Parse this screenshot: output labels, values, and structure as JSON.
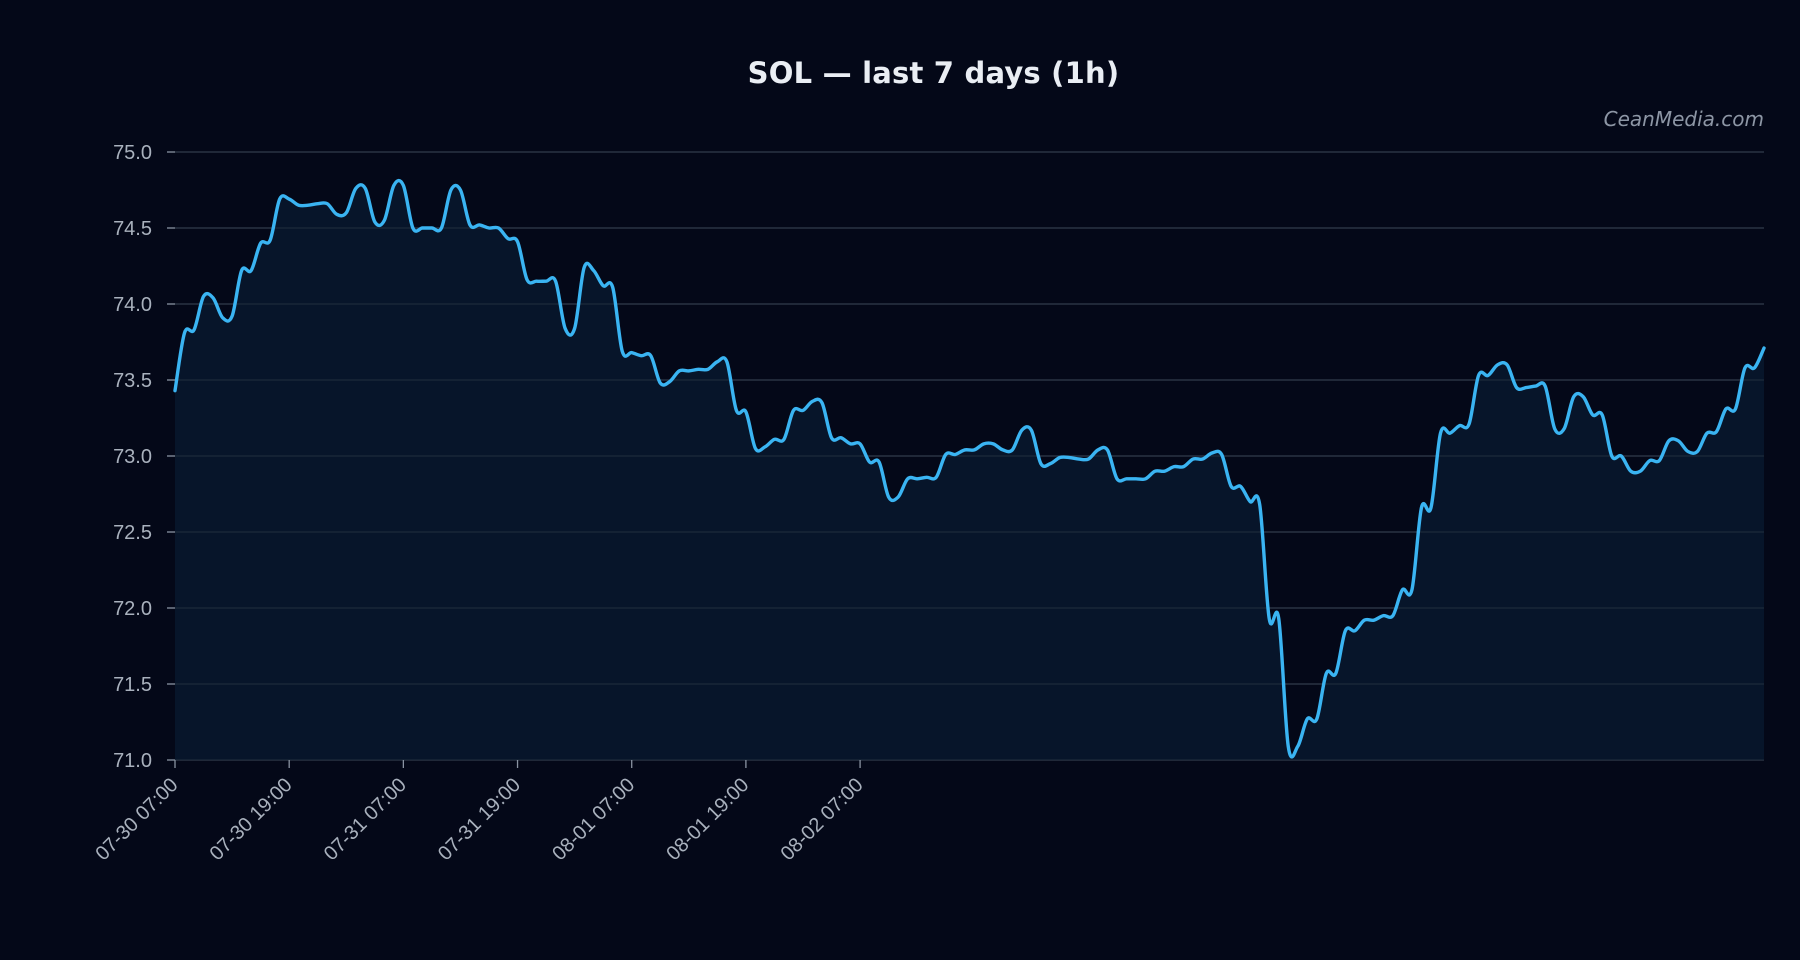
{
  "chart_data": {
    "type": "area",
    "title": "SOL — last 7 days (1h)",
    "watermark": "CeanMedia.com",
    "xlabel": "",
    "ylabel": "",
    "ylim": [
      71.0,
      75.0
    ],
    "yticks": [
      "75.0",
      "74.5",
      "74.0",
      "73.5",
      "73.0",
      "72.5",
      "72.0",
      "71.5",
      "71.0"
    ],
    "xticks": [
      "07-30 07:00",
      "07-30 19:00",
      "07-31 07:00",
      "07-31 19:00",
      "08-01 07:00",
      "08-01 19:00",
      "08-02 07:00"
    ],
    "x_start": "07-30 07:00",
    "x_step": "1h",
    "grid": true,
    "colors": {
      "line": "#3ab4f2",
      "fill": "#07162b",
      "grid": "#2e3848",
      "background": "#040818"
    },
    "series": [
      {
        "values": [
          73.43,
          73.81,
          73.83,
          74.05,
          74.04,
          73.91,
          73.92,
          74.22,
          74.22,
          74.4,
          74.42,
          74.69,
          74.69,
          74.65,
          74.65,
          74.66,
          74.66,
          74.59,
          74.6,
          74.76,
          74.76,
          74.54,
          74.55,
          74.78,
          74.78,
          74.5,
          74.5,
          74.5,
          74.5,
          74.75,
          74.75,
          74.52,
          74.52,
          74.5,
          74.5,
          74.43,
          74.41,
          74.16,
          74.15,
          74.15,
          74.15,
          73.84,
          73.84,
          74.24,
          74.22,
          74.12,
          74.11,
          73.69,
          73.68,
          73.66,
          73.66,
          73.48,
          73.49,
          73.56,
          73.56,
          73.57,
          73.57,
          73.62,
          73.62,
          73.3,
          73.29,
          73.05,
          73.06,
          73.11,
          73.11,
          73.3,
          73.3,
          73.36,
          73.35,
          73.12,
          73.12,
          73.08,
          73.08,
          72.96,
          72.96,
          72.73,
          72.73,
          72.85,
          72.85,
          72.86,
          72.86,
          73.01,
          73.01,
          73.04,
          73.04,
          73.08,
          73.08,
          73.04,
          73.04,
          73.17,
          73.17,
          72.95,
          72.95,
          72.99,
          72.99,
          72.98,
          72.98,
          73.04,
          73.04,
          72.85,
          72.85,
          72.85,
          72.85,
          72.9,
          72.9,
          72.93,
          72.93,
          72.98,
          72.98,
          73.02,
          73.01,
          72.8,
          72.8,
          72.7,
          72.68,
          71.93,
          71.93,
          71.09,
          71.09,
          71.27,
          71.27,
          71.57,
          71.57,
          71.85,
          71.85,
          71.92,
          71.92,
          71.95,
          71.95,
          72.12,
          72.12,
          72.66,
          72.66,
          73.15,
          73.15,
          73.2,
          73.21,
          73.53,
          73.53,
          73.6,
          73.6,
          73.45,
          73.45,
          73.46,
          73.46,
          73.18,
          73.18,
          73.39,
          73.39,
          73.27,
          73.27,
          73.0,
          73.0,
          72.9,
          72.9,
          72.97,
          72.97,
          73.1,
          73.1,
          73.03,
          73.03,
          73.15,
          73.16,
          73.31,
          73.31,
          73.58,
          73.58,
          73.71
        ]
      }
    ]
  }
}
